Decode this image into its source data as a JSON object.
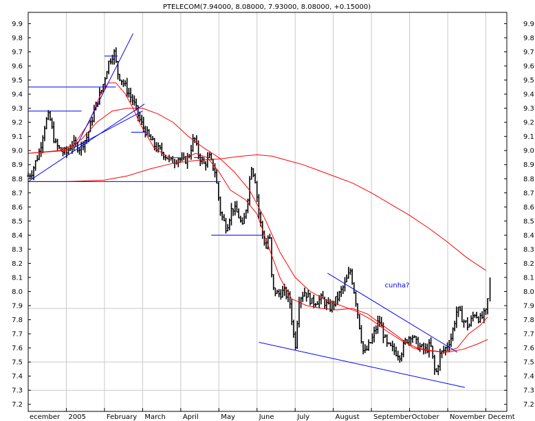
{
  "chart_data": {
    "type": "line",
    "title": "PTELECOM(7.94000, 8.08000, 7.93000, 8.08000, +0.15000)",
    "ylim": [
      7.15,
      9.98
    ],
    "y_ticks": [
      7.2,
      7.3,
      7.4,
      7.5,
      7.6,
      7.7,
      7.8,
      7.9,
      8.0,
      8.1,
      8.2,
      8.3,
      8.4,
      8.5,
      8.6,
      8.7,
      8.8,
      8.9,
      9.0,
      9.1,
      9.2,
      9.3,
      9.4,
      9.5,
      9.6,
      9.7,
      9.8,
      9.9
    ],
    "y_tick_labels": [
      "7.2",
      "7.3",
      "7.4",
      "7.5",
      "7.6",
      "7.7",
      "7.8",
      "7.9",
      "8.0",
      "8.1",
      "8.2",
      "8.3",
      "8.4",
      "8.5",
      "8.6",
      "8.7",
      "8.8",
      "8.9",
      "9.0",
      "9.1",
      "9.2",
      "9.3",
      "9.4",
      "9.5",
      "9.6",
      "9.7",
      "9.8",
      "9.9"
    ],
    "x_range": [
      0,
      12.55
    ],
    "month_starts": [
      0,
      1,
      2,
      3,
      4,
      5,
      6,
      7,
      8,
      9,
      10,
      11,
      12
    ],
    "month_labels": [
      "ecember",
      "2005",
      "February",
      "March",
      "April",
      "May",
      "June",
      "July",
      "August",
      "September",
      "October",
      "November",
      "Decemt"
    ],
    "grid": {
      "vertical_months": true,
      "horizontal_levels": [
        7.88,
        7.5,
        7.3
      ]
    },
    "price_anchors": [
      [
        0.0,
        8.82
      ],
      [
        0.1,
        8.85
      ],
      [
        0.3,
        9.0
      ],
      [
        0.45,
        9.2
      ],
      [
        0.55,
        9.25
      ],
      [
        0.7,
        9.05
      ],
      [
        0.85,
        9.0
      ],
      [
        1.0,
        8.98
      ],
      [
        1.15,
        9.05
      ],
      [
        1.35,
        9.02
      ],
      [
        1.55,
        9.1
      ],
      [
        1.75,
        9.3
      ],
      [
        1.95,
        9.45
      ],
      [
        2.1,
        9.62
      ],
      [
        2.25,
        9.7
      ],
      [
        2.35,
        9.55
      ],
      [
        2.55,
        9.45
      ],
      [
        2.75,
        9.35
      ],
      [
        2.95,
        9.2
      ],
      [
        3.15,
        9.1
      ],
      [
        3.35,
        9.02
      ],
      [
        3.55,
        8.98
      ],
      [
        3.75,
        8.92
      ],
      [
        3.95,
        8.95
      ],
      [
        4.05,
        8.92
      ],
      [
        4.2,
        8.95
      ],
      [
        4.35,
        9.1
      ],
      [
        4.45,
        8.98
      ],
      [
        4.6,
        8.9
      ],
      [
        4.75,
        8.95
      ],
      [
        4.9,
        8.85
      ],
      [
        5.05,
        8.55
      ],
      [
        5.2,
        8.45
      ],
      [
        5.35,
        8.6
      ],
      [
        5.5,
        8.55
      ],
      [
        5.62,
        8.45
      ],
      [
        5.75,
        8.65
      ],
      [
        5.85,
        8.9
      ],
      [
        5.95,
        8.8
      ],
      [
        6.05,
        8.55
      ],
      [
        6.15,
        8.4
      ],
      [
        6.25,
        8.3
      ],
      [
        6.32,
        8.45
      ],
      [
        6.4,
        8.02
      ],
      [
        6.55,
        7.98
      ],
      [
        6.7,
        8.0
      ],
      [
        6.85,
        7.95
      ],
      [
        7.0,
        7.6
      ],
      [
        7.1,
        7.95
      ],
      [
        7.25,
        8.0
      ],
      [
        7.45,
        7.92
      ],
      [
        7.7,
        7.95
      ],
      [
        7.9,
        7.88
      ],
      [
        8.1,
        7.95
      ],
      [
        8.3,
        8.05
      ],
      [
        8.45,
        8.15
      ],
      [
        8.6,
        7.92
      ],
      [
        8.8,
        7.55
      ],
      [
        9.0,
        7.65
      ],
      [
        9.2,
        7.8
      ],
      [
        9.4,
        7.62
      ],
      [
        9.6,
        7.58
      ],
      [
        9.75,
        7.55
      ],
      [
        9.9,
        7.65
      ],
      [
        10.05,
        7.7
      ],
      [
        10.2,
        7.62
      ],
      [
        10.4,
        7.58
      ],
      [
        10.55,
        7.62
      ],
      [
        10.68,
        7.4
      ],
      [
        10.8,
        7.55
      ],
      [
        10.95,
        7.6
      ],
      [
        11.1,
        7.68
      ],
      [
        11.25,
        7.88
      ],
      [
        11.4,
        7.8
      ],
      [
        11.55,
        7.75
      ],
      [
        11.7,
        7.85
      ],
      [
        11.85,
        7.8
      ],
      [
        12.0,
        7.85
      ],
      [
        12.08,
        8.0
      ]
    ],
    "bar_noise": 0.06,
    "close_value": 8.08,
    "series": [
      {
        "color": "#ff0000",
        "values": [
          [
            0.0,
            8.98
          ],
          [
            0.4,
            8.99
          ],
          [
            0.8,
            9.0
          ],
          [
            1.2,
            9.04
          ],
          [
            1.6,
            9.2
          ],
          [
            1.9,
            9.4
          ],
          [
            2.1,
            9.48
          ],
          [
            2.3,
            9.48
          ],
          [
            2.55,
            9.4
          ],
          [
            2.75,
            9.3
          ],
          [
            2.95,
            9.18
          ],
          [
            3.3,
            9.02
          ],
          [
            3.7,
            8.95
          ],
          [
            4.1,
            8.95
          ],
          [
            4.4,
            8.98
          ],
          [
            4.7,
            8.95
          ],
          [
            5.0,
            8.85
          ],
          [
            5.3,
            8.72
          ],
          [
            5.7,
            8.65
          ],
          [
            6.0,
            8.55
          ],
          [
            6.3,
            8.32
          ],
          [
            6.6,
            8.1
          ],
          [
            6.9,
            7.95
          ],
          [
            7.3,
            7.9
          ],
          [
            7.7,
            7.88
          ],
          [
            8.1,
            7.87
          ],
          [
            8.5,
            7.88
          ],
          [
            8.9,
            7.84
          ],
          [
            9.3,
            7.76
          ],
          [
            9.7,
            7.68
          ],
          [
            10.1,
            7.6
          ],
          [
            10.5,
            7.58
          ],
          [
            10.9,
            7.57
          ],
          [
            11.25,
            7.6
          ],
          [
            11.55,
            7.7
          ],
          [
            11.85,
            7.76
          ],
          [
            12.05,
            7.82
          ]
        ]
      },
      {
        "color": "#ff0000",
        "values": [
          [
            0.0,
            8.98
          ],
          [
            0.5,
            8.99
          ],
          [
            1.0,
            9.0
          ],
          [
            1.4,
            9.08
          ],
          [
            1.8,
            9.2
          ],
          [
            2.2,
            9.28
          ],
          [
            2.6,
            9.3
          ],
          [
            3.0,
            9.3
          ],
          [
            3.4,
            9.26
          ],
          [
            3.8,
            9.2
          ],
          [
            4.2,
            9.1
          ],
          [
            4.6,
            9.02
          ],
          [
            5.0,
            8.95
          ],
          [
            5.4,
            8.85
          ],
          [
            5.8,
            8.72
          ],
          [
            6.2,
            8.52
          ],
          [
            6.6,
            8.28
          ],
          [
            7.0,
            8.1
          ],
          [
            7.4,
            8.0
          ],
          [
            7.8,
            7.94
          ],
          [
            8.2,
            7.9
          ],
          [
            8.6,
            7.86
          ],
          [
            9.0,
            7.8
          ],
          [
            9.4,
            7.72
          ],
          [
            9.8,
            7.65
          ],
          [
            10.2,
            7.6
          ],
          [
            10.6,
            7.58
          ],
          [
            11.0,
            7.57
          ],
          [
            11.4,
            7.59
          ],
          [
            11.8,
            7.63
          ],
          [
            12.05,
            7.66
          ]
        ]
      },
      {
        "color": "#ff0000",
        "values": [
          [
            0.0,
            8.78
          ],
          [
            1.0,
            8.78
          ],
          [
            2.0,
            8.79
          ],
          [
            2.6,
            8.82
          ],
          [
            3.2,
            8.87
          ],
          [
            3.8,
            8.91
          ],
          [
            4.4,
            8.93
          ],
          [
            5.0,
            8.94
          ],
          [
            5.6,
            8.96
          ],
          [
            6.0,
            8.97
          ],
          [
            6.4,
            8.96
          ],
          [
            6.8,
            8.93
          ],
          [
            7.2,
            8.9
          ],
          [
            7.6,
            8.86
          ],
          [
            8.0,
            8.82
          ],
          [
            8.5,
            8.77
          ],
          [
            9.0,
            8.7
          ],
          [
            9.5,
            8.62
          ],
          [
            10.0,
            8.54
          ],
          [
            10.5,
            8.45
          ],
          [
            11.0,
            8.35
          ],
          [
            11.5,
            8.24
          ],
          [
            12.0,
            8.15
          ]
        ]
      }
    ],
    "trendlines": [
      {
        "color": "#0000ff",
        "points": [
          [
            0.0,
            8.78
          ],
          [
            3.05,
            9.33
          ]
        ]
      },
      {
        "color": "#0000ff",
        "points": [
          [
            1.3,
            9.05
          ],
          [
            2.75,
            9.83
          ]
        ]
      },
      {
        "color": "#0000ff",
        "points": [
          [
            1.2,
            9.02
          ],
          [
            3.0,
            9.28
          ]
        ]
      },
      {
        "color": "#0000ff",
        "points": [
          [
            0.0,
            9.45
          ],
          [
            2.3,
            9.45
          ]
        ]
      },
      {
        "color": "#0000ff",
        "points": [
          [
            0.0,
            9.28
          ],
          [
            1.4,
            9.28
          ]
        ]
      },
      {
        "color": "#0000ff",
        "points": [
          [
            2.0,
            9.67
          ],
          [
            2.35,
            9.67
          ]
        ]
      },
      {
        "color": "#0000ff",
        "points": [
          [
            0.0,
            8.78
          ],
          [
            5.05,
            8.78
          ]
        ]
      },
      {
        "color": "#0000ff",
        "points": [
          [
            4.8,
            8.4
          ],
          [
            6.15,
            8.4
          ]
        ]
      },
      {
        "color": "#0000ff",
        "points": [
          [
            2.7,
            9.13
          ],
          [
            3.1,
            9.13
          ]
        ]
      },
      {
        "color": "#0000ff",
        "points": [
          [
            4.35,
            8.95
          ],
          [
            4.6,
            8.95
          ]
        ]
      },
      {
        "color": "#0000ff",
        "points": [
          [
            7.85,
            8.13
          ],
          [
            11.25,
            7.57
          ]
        ]
      },
      {
        "color": "#0000ff",
        "points": [
          [
            6.05,
            7.64
          ],
          [
            11.45,
            7.32
          ]
        ]
      }
    ],
    "annotations": [
      {
        "text": "cunha?",
        "x": 9.35,
        "y": 8.03,
        "color": "#0000ff"
      }
    ]
  }
}
